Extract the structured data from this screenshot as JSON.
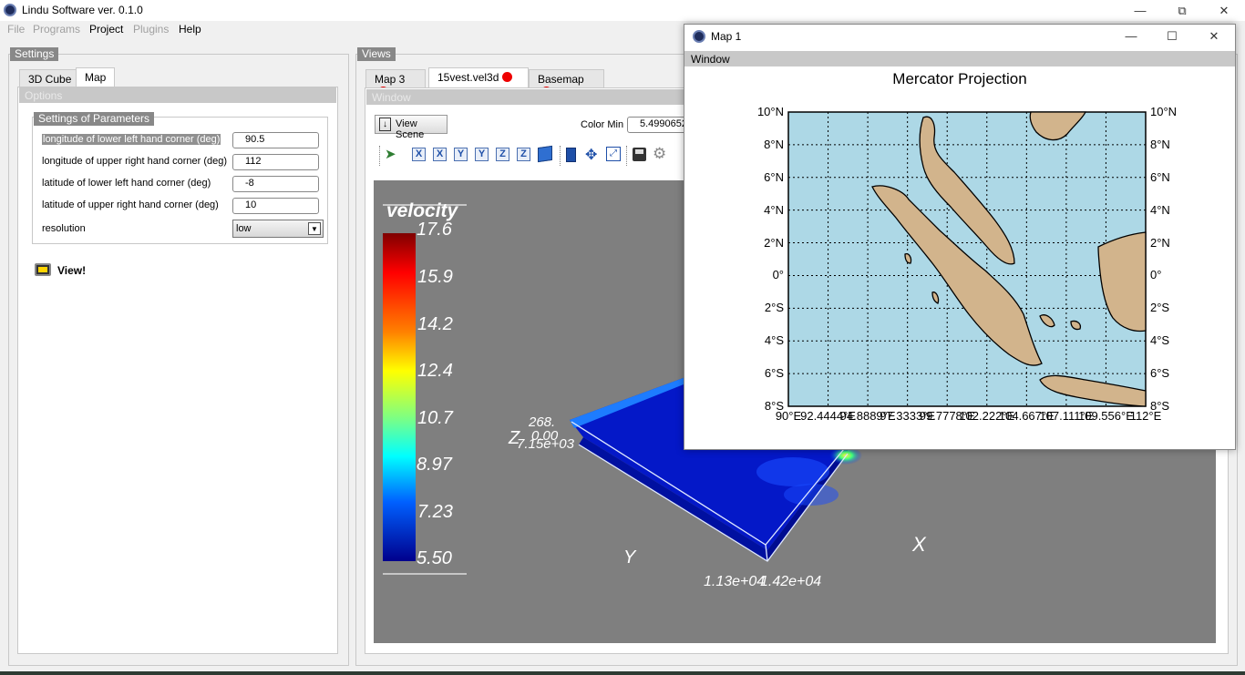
{
  "app": {
    "title": "Lindu Software ver. 0.1.0"
  },
  "menu": {
    "file": "File",
    "programs": "Programs",
    "project": "Project",
    "plugins": "Plugins",
    "help": "Help"
  },
  "settings": {
    "group_title": "Settings",
    "tabs": [
      "3D Cube",
      "Map"
    ],
    "options_label": "Options",
    "params_title": "Settings of Parameters",
    "params": [
      {
        "label": "longitude of lower left hand corner (deg)",
        "value": "90.5"
      },
      {
        "label": "longitude of upper right hand corner (deg)",
        "value": "112"
      },
      {
        "label": "latitude of lower left hand corner (deg)",
        "value": "-8"
      },
      {
        "label": "latitude of upper right hand corner (deg)",
        "value": "10"
      }
    ],
    "resolution": {
      "label": "resolution",
      "value": "low"
    },
    "view_button": "View!"
  },
  "views": {
    "group_title": "Views",
    "tabs": [
      "Map 3",
      "15vest.vel3d",
      "Basemap"
    ],
    "window_label": "Window",
    "view_scene": "View Scene",
    "color_min_label": "Color Min",
    "color_min_value": "5.4990652"
  },
  "scene": {
    "colorbar_title": "velocity",
    "colorbar_ticks": [
      "17.6",
      "15.9",
      "14.2",
      "12.4",
      "10.7",
      "8.97",
      "7.23",
      "5.50"
    ],
    "axis_x": "X",
    "axis_y": "Y",
    "axis_z": "Z",
    "label_268": "268.",
    "label_000": "0.00",
    "label_715": "7.15e+03",
    "label_113": "1.13e+04",
    "label_142": "1.42e+04"
  },
  "mapwin": {
    "title": "Map 1",
    "window_label": "Window",
    "chart_data": {
      "type": "map",
      "title": "Mercator Projection",
      "lat_labels": [
        "10°N",
        "8°N",
        "6°N",
        "4°N",
        "2°N",
        "0°",
        "2°S",
        "4°S",
        "6°S",
        "8°S"
      ],
      "lon_labels": [
        "90°E",
        "92.4444°E",
        "94.8889°E",
        "97.3333°E",
        "99.7778°E",
        "102.222°E",
        "104.667°E",
        "107.111°E",
        "109.556°E",
        "112°E"
      ],
      "lon_range": [
        90.5,
        112
      ],
      "lat_range": [
        -8,
        10
      ],
      "ocean_color": "#add8e6",
      "land_color": "#d2b48c",
      "grid": true
    }
  }
}
